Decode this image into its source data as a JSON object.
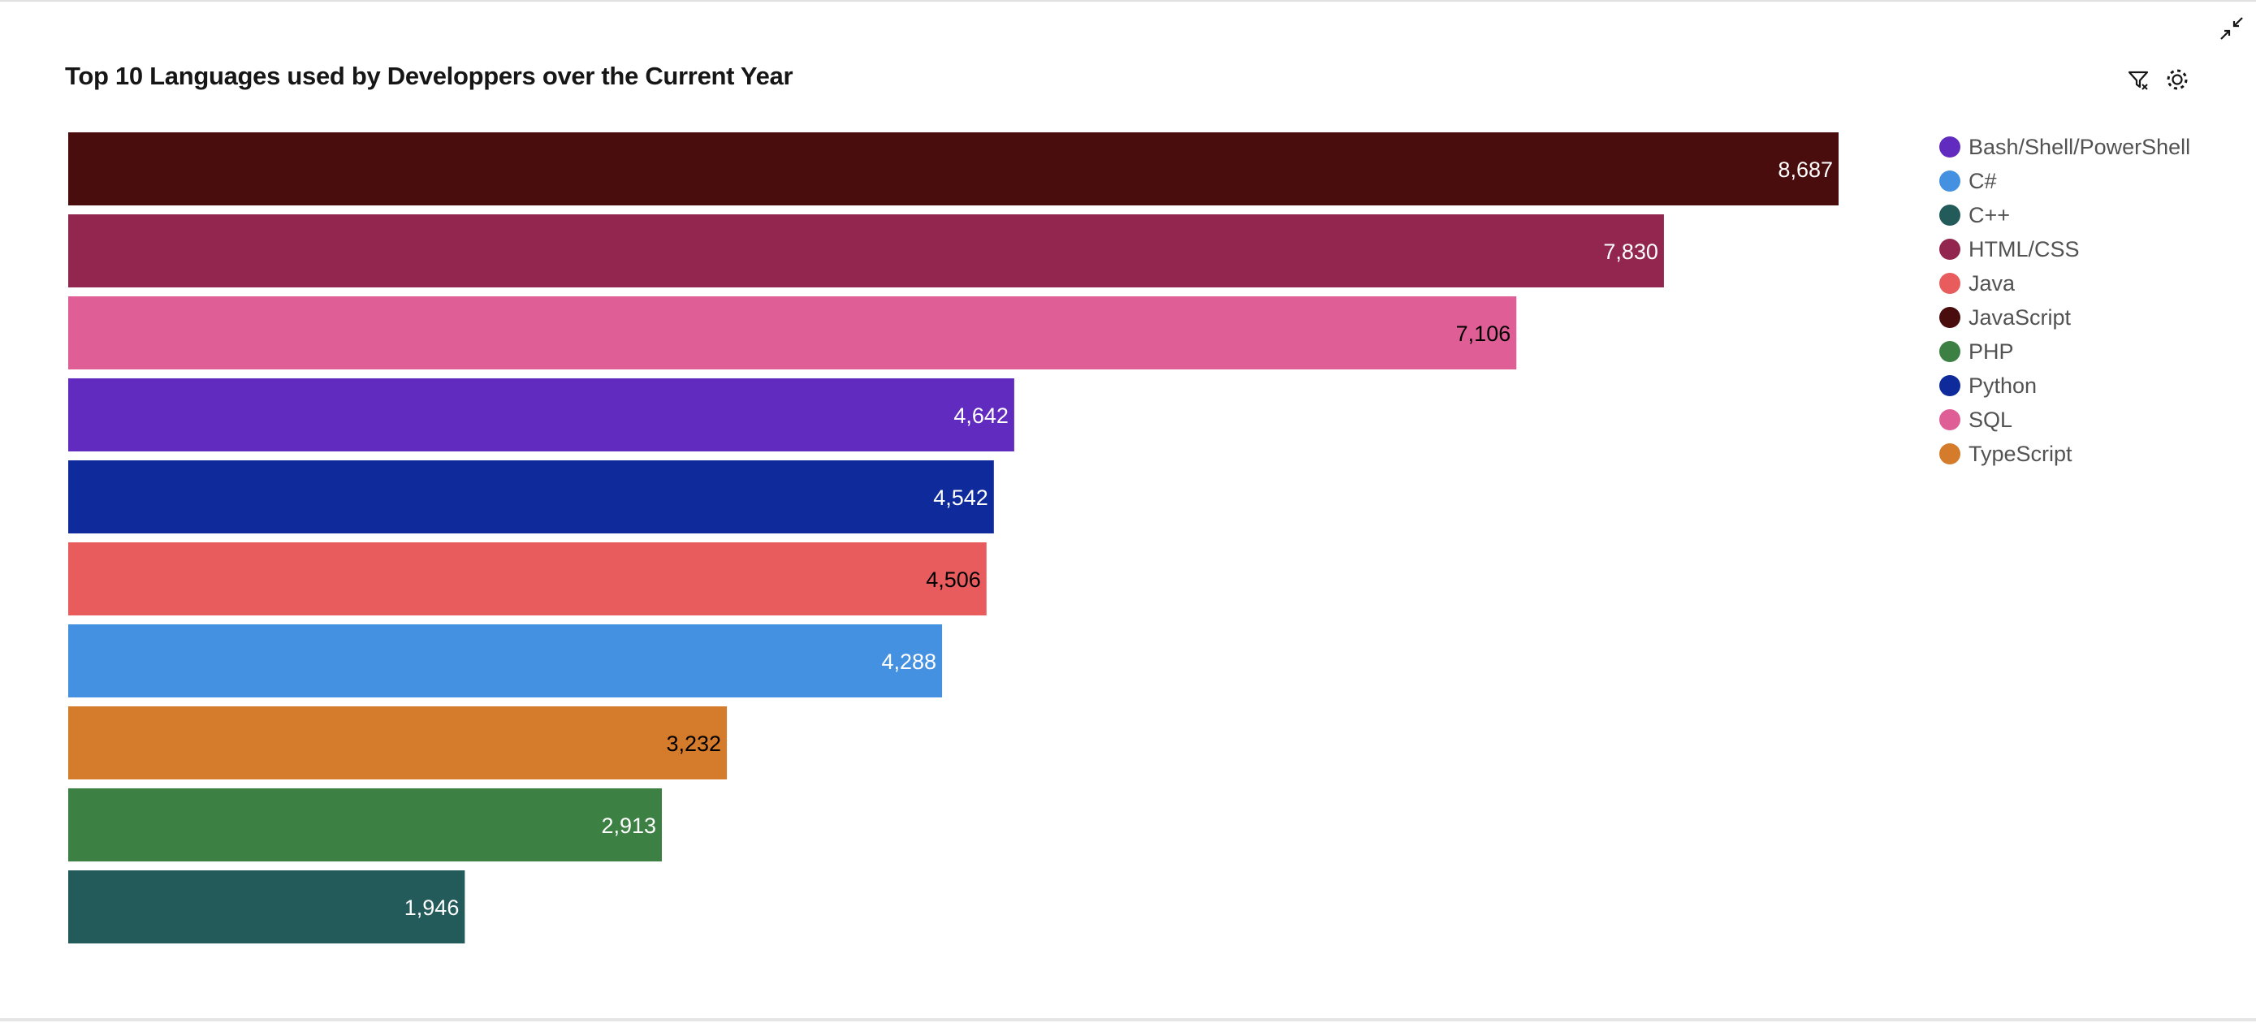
{
  "title": "Top 10 Languages used by Developpers over the Current Year",
  "toolbar": {
    "icons": [
      "filter-icon",
      "settings-icon",
      "minimize-icon"
    ]
  },
  "chart_data": {
    "type": "bar",
    "orientation": "horizontal",
    "title": "Top 10 Languages used by Developpers over the Current Year",
    "categories": [
      "JavaScript",
      "HTML/CSS",
      "SQL",
      "Bash/Shell/PowerShell",
      "Python",
      "Java",
      "C#",
      "TypeScript",
      "PHP",
      "C++"
    ],
    "values": [
      8687,
      7830,
      7106,
      4642,
      4542,
      4506,
      4288,
      3232,
      2913,
      1946
    ],
    "value_labels": [
      "8,687",
      "7,830",
      "7,106",
      "4,642",
      "4,542",
      "4,506",
      "4,288",
      "3,232",
      "2,913",
      "1,946"
    ],
    "colors": [
      "#4a0d0e",
      "#93264e",
      "#de5e95",
      "#622bbf",
      "#0f2a9a",
      "#e85c5e",
      "#4490e1",
      "#d47b2c",
      "#3c8044",
      "#235a5a"
    ],
    "label_colors": [
      "#ffffff",
      "#ffffff",
      "#000000",
      "#ffffff",
      "#ffffff",
      "#000000",
      "#ffffff",
      "#000000",
      "#ffffff",
      "#ffffff"
    ],
    "xlim": [
      0,
      8687
    ],
    "grid": false,
    "legend_position": "right",
    "legend": [
      {
        "label": "Bash/Shell/PowerShell",
        "color": "#622bbf"
      },
      {
        "label": "C#",
        "color": "#4490e1"
      },
      {
        "label": "C++",
        "color": "#235a5a"
      },
      {
        "label": "HTML/CSS",
        "color": "#93264e"
      },
      {
        "label": "Java",
        "color": "#e85c5e"
      },
      {
        "label": "JavaScript",
        "color": "#4a0d0e"
      },
      {
        "label": "PHP",
        "color": "#3c8044"
      },
      {
        "label": "Python",
        "color": "#0f2a9a"
      },
      {
        "label": "SQL",
        "color": "#de5e95"
      },
      {
        "label": "TypeScript",
        "color": "#d47b2c"
      }
    ]
  }
}
